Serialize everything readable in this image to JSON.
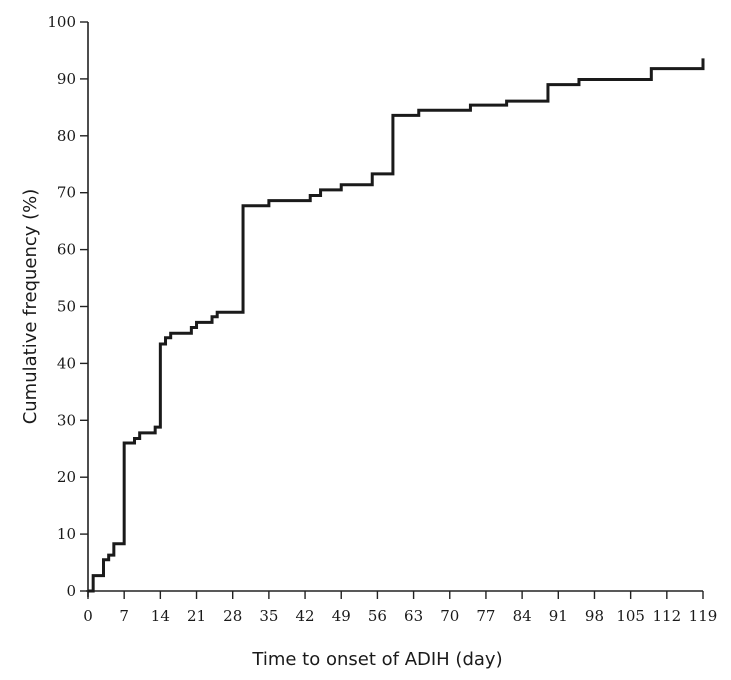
{
  "chart_data": {
    "type": "line",
    "step": true,
    "xlabel": "Time to onset of ADIH (day)",
    "ylabel": "Cumulative frequency (%)",
    "xlim": [
      0,
      119
    ],
    "ylim": [
      0,
      100
    ],
    "xticks": [
      0,
      7,
      14,
      21,
      28,
      35,
      42,
      49,
      56,
      63,
      70,
      77,
      84,
      91,
      98,
      105,
      112,
      119
    ],
    "yticks": [
      0,
      10,
      20,
      30,
      40,
      50,
      60,
      70,
      80,
      90,
      100
    ],
    "grid": false,
    "series": [
      {
        "color": "#1a1a1a",
        "x": [
          0,
          1,
          3,
          4,
          5,
          7,
          9,
          10,
          13,
          14,
          15,
          16,
          20,
          21,
          24,
          25,
          30,
          35,
          43,
          45,
          49,
          55,
          59,
          64,
          74,
          81,
          89,
          95,
          109,
          119
        ],
        "y": [
          0,
          2.7,
          5.5,
          6.3,
          8.3,
          26,
          26.8,
          27.8,
          28.8,
          43.4,
          44.5,
          45.3,
          46.3,
          47.2,
          48.2,
          49,
          67.7,
          68.6,
          69.5,
          70.5,
          71.4,
          73.3,
          83.6,
          84.5,
          85.4,
          86.1,
          89,
          89.9,
          91.8,
          93.6
        ]
      }
    ]
  }
}
